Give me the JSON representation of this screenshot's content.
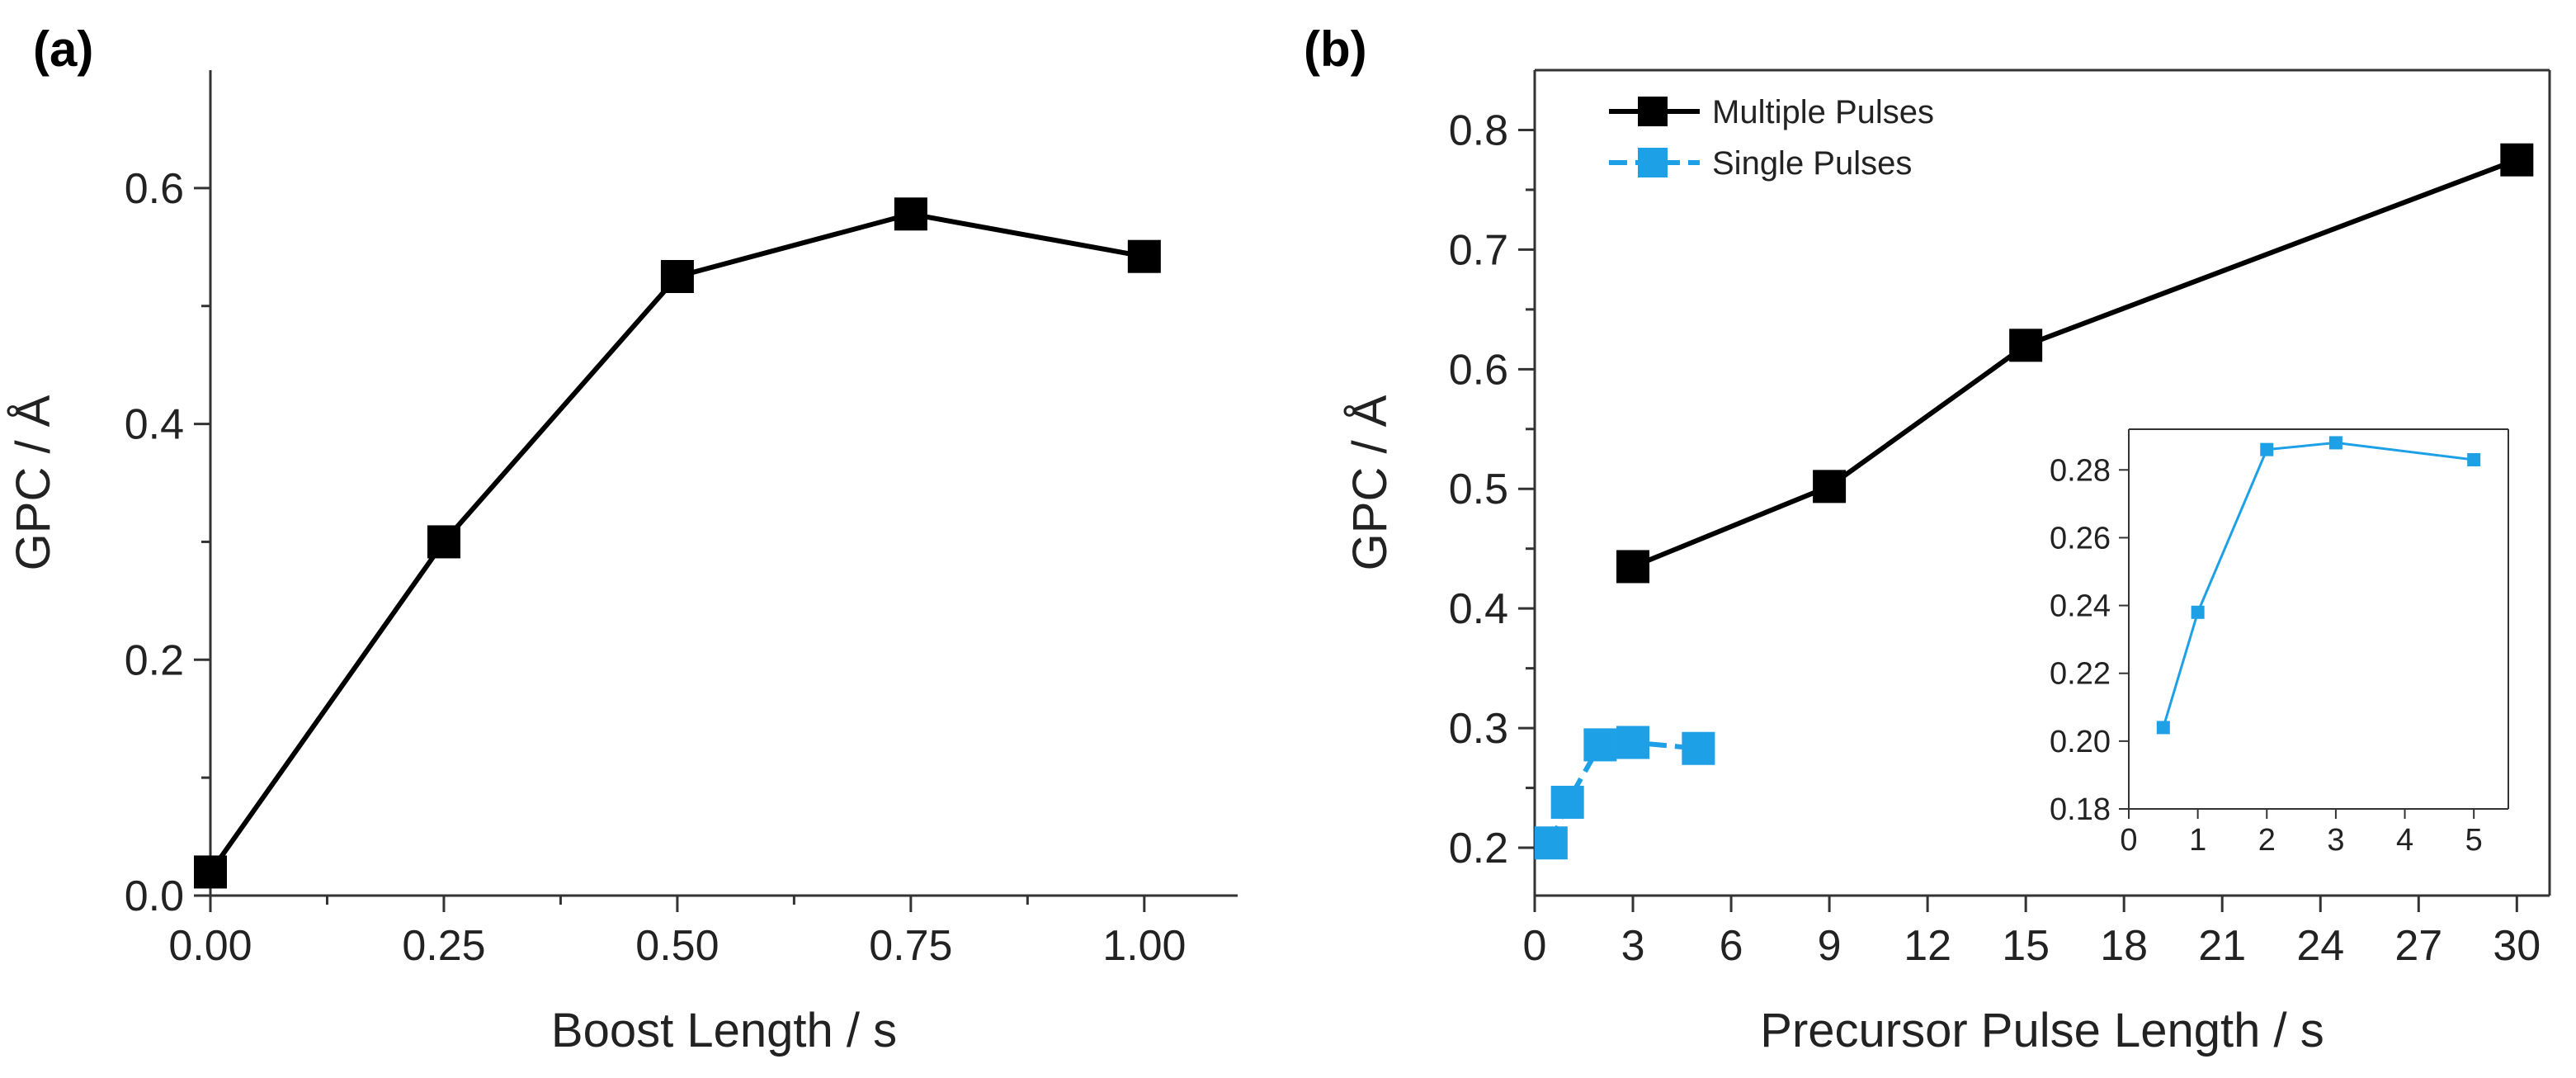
{
  "panels": {
    "a": {
      "letter": "(a)"
    },
    "b": {
      "letter": "(b)"
    }
  },
  "colors": {
    "multiple": "#000000",
    "single": "#1ea0e6",
    "axis": "#333333"
  },
  "chart_data": [
    {
      "id": "a",
      "type": "line",
      "title": "",
      "xlabel": "Boost Length / s",
      "ylabel": "GPC / Å",
      "xlim": [
        0,
        1.1
      ],
      "ylim": [
        0,
        0.7
      ],
      "xticks": [
        0,
        0.25,
        0.5,
        0.75,
        1.0
      ],
      "xtick_labels": [
        "0.00",
        "0.25",
        "0.50",
        "0.75",
        "1.00"
      ],
      "yticks": [
        0,
        0.2,
        0.4,
        0.6
      ],
      "ytick_labels": [
        "0.0",
        "0.2",
        "0.4",
        "0.6"
      ],
      "series": [
        {
          "name": "",
          "x": [
            0,
            0.25,
            0.5,
            0.75,
            1.0
          ],
          "y": [
            0.02,
            0.3,
            0.525,
            0.578,
            0.542
          ]
        }
      ]
    },
    {
      "id": "b",
      "type": "line",
      "title": "",
      "xlabel": "Precursor Pulse Length / s",
      "ylabel": "GPC / Å",
      "xlim": [
        0,
        31
      ],
      "ylim": [
        0.16,
        0.85
      ],
      "xticks": [
        0,
        3,
        6,
        9,
        12,
        15,
        18,
        21,
        24,
        27,
        30
      ],
      "xtick_labels": [
        "0",
        "3",
        "6",
        "9",
        "12",
        "15",
        "18",
        "21",
        "24",
        "27",
        "30"
      ],
      "yticks": [
        0.2,
        0.3,
        0.4,
        0.5,
        0.6,
        0.7,
        0.8
      ],
      "ytick_labels": [
        "0.2",
        "0.3",
        "0.4",
        "0.5",
        "0.6",
        "0.7",
        "0.8"
      ],
      "legend_position": "top-left",
      "series": [
        {
          "name": "Multiple Pulses",
          "x": [
            3,
            9,
            15,
            30
          ],
          "y": [
            0.435,
            0.502,
            0.62,
            0.775
          ]
        },
        {
          "name": "Single Pulses",
          "x": [
            0.5,
            1,
            2,
            3,
            5
          ],
          "y": [
            0.204,
            0.238,
            0.286,
            0.288,
            0.283
          ]
        }
      ]
    },
    {
      "id": "b-inset",
      "type": "line",
      "title": "",
      "xlabel": "",
      "ylabel": "",
      "xlim": [
        0,
        5.5
      ],
      "ylim": [
        0.18,
        0.292
      ],
      "xticks": [
        0,
        1,
        2,
        3,
        4,
        5
      ],
      "xtick_labels": [
        "0",
        "1",
        "2",
        "3",
        "4",
        "5"
      ],
      "yticks": [
        0.18,
        0.2,
        0.22,
        0.24,
        0.26,
        0.28
      ],
      "ytick_labels": [
        "0.18",
        "0.20",
        "0.22",
        "0.24",
        "0.26",
        "0.28"
      ],
      "series": [
        {
          "name": "Single Pulses",
          "x": [
            0.5,
            1,
            2,
            3,
            5
          ],
          "y": [
            0.204,
            0.238,
            0.286,
            0.288,
            0.283
          ]
        }
      ]
    }
  ]
}
